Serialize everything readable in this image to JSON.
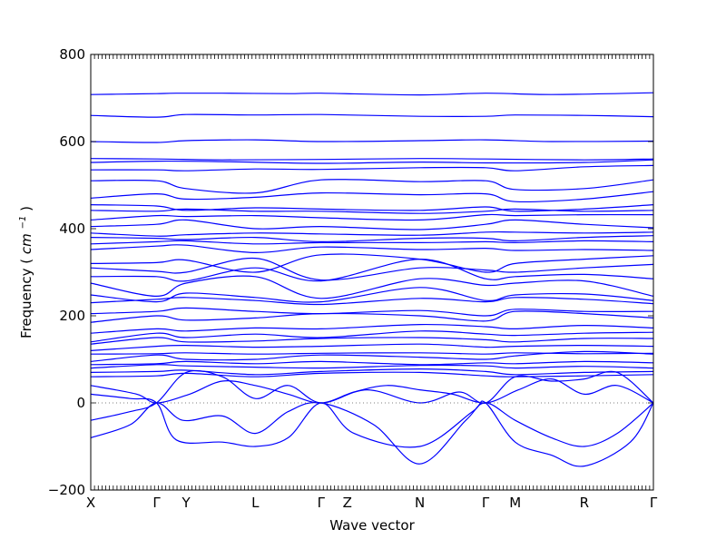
{
  "chart_data": {
    "type": "line",
    "xlabel": "Wave vector",
    "ylabel": "Frequency",
    "ylabel_unit_base": "cm",
    "ylabel_unit_exp": "−1",
    "ylim": [
      -200,
      800
    ],
    "y_ticks": [
      -200,
      0,
      200,
      400,
      600,
      800
    ],
    "grid": false,
    "zero_reference_line": 0,
    "color": "#0000ff",
    "high_symmetry_points": [
      {
        "label": "X",
        "x": 0.0
      },
      {
        "label": "Γ",
        "x": 1.0
      },
      {
        "label": "Y",
        "x": 1.45
      },
      {
        "label": "L",
        "x": 2.5
      },
      {
        "label": "Γ",
        "x": 3.5
      },
      {
        "label": "Z",
        "x": 3.9
      },
      {
        "label": "N",
        "x": 5.0
      },
      {
        "label": "Γ",
        "x": 6.0
      },
      {
        "label": "M",
        "x": 6.45
      },
      {
        "label": "R",
        "x": 7.5
      },
      {
        "label": "Γ",
        "x": 8.55
      }
    ],
    "series": [
      {
        "x": [
          0,
          0.5,
          1.0,
          1.3,
          2.0,
          3.0,
          3.5,
          5.0,
          6.0,
          7.0,
          8.55
        ],
        "y": [
          708,
          709,
          710,
          711,
          711,
          710,
          711,
          707,
          711,
          708,
          712
        ]
      },
      {
        "x": [
          0,
          1.0,
          1.45,
          2.5,
          3.5,
          5.0,
          6.0,
          6.45,
          7.5,
          8.55
        ],
        "y": [
          660,
          656,
          662,
          661,
          662,
          658,
          658,
          661,
          660,
          657
        ]
      },
      {
        "x": [
          0,
          1.0,
          1.45,
          2.5,
          3.5,
          5.0,
          6.0,
          7.0,
          8.55
        ],
        "y": [
          600,
          598,
          602,
          604,
          600,
          602,
          604,
          600,
          601
        ]
      },
      {
        "x": [
          0,
          1.0,
          2.0,
          3.5,
          5.0,
          6.0,
          7.5,
          8.55
        ],
        "y": [
          561,
          560,
          558,
          559,
          561,
          560,
          558,
          560
        ]
      },
      {
        "x": [
          0,
          1.0,
          2.0,
          3.5,
          5.0,
          6.0,
          7.5,
          8.55
        ],
        "y": [
          552,
          555,
          554,
          550,
          553,
          551,
          552,
          558
        ]
      },
      {
        "x": [
          0,
          1.0,
          1.45,
          2.5,
          3.5,
          5.0,
          6.0,
          6.45,
          7.5,
          8.55
        ],
        "y": [
          535,
          535,
          533,
          537,
          536,
          540,
          540,
          533,
          542,
          545
        ]
      },
      {
        "x": [
          0,
          1.0,
          1.45,
          2.5,
          3.5,
          5.0,
          6.0,
          6.45,
          7.5,
          8.55
        ],
        "y": [
          510,
          510,
          492,
          482,
          512,
          508,
          510,
          490,
          492,
          512
        ]
      },
      {
        "x": [
          0,
          1.0,
          1.45,
          2.5,
          3.5,
          5.0,
          6.0,
          6.45,
          7.5,
          8.55
        ],
        "y": [
          470,
          480,
          468,
          472,
          482,
          478,
          480,
          462,
          468,
          485
        ]
      },
      {
        "x": [
          0,
          1.0,
          1.45,
          2.5,
          3.5,
          5.0,
          6.0,
          6.45,
          7.5,
          8.55
        ],
        "y": [
          455,
          452,
          442,
          448,
          445,
          442,
          450,
          440,
          445,
          455
        ]
      },
      {
        "x": [
          0,
          1.0,
          1.45,
          2.5,
          3.5,
          5.0,
          6.0,
          6.45,
          7.5,
          8.55
        ],
        "y": [
          442,
          440,
          445,
          440,
          440,
          435,
          440,
          445,
          440,
          442
        ]
      },
      {
        "x": [
          0,
          1.0,
          1.45,
          2.5,
          3.5,
          5.0,
          6.0,
          6.45,
          7.5,
          8.55
        ],
        "y": [
          420,
          430,
          428,
          430,
          425,
          420,
          432,
          430,
          432,
          432
        ]
      },
      {
        "x": [
          0,
          1.0,
          1.45,
          2.5,
          3.5,
          5.0,
          6.0,
          6.45,
          7.5,
          8.55
        ],
        "y": [
          405,
          410,
          420,
          400,
          405,
          398,
          410,
          420,
          410,
          402
        ]
      },
      {
        "x": [
          0,
          1.0,
          1.45,
          2.5,
          3.5,
          5.0,
          6.0,
          6.45,
          7.5,
          8.55
        ],
        "y": [
          390,
          383,
          386,
          390,
          388,
          385,
          392,
          392,
          390,
          392
        ]
      },
      {
        "x": [
          0,
          1.0,
          1.45,
          2.5,
          3.5,
          5.0,
          6.0,
          6.45,
          7.5,
          8.55
        ],
        "y": [
          380,
          378,
          375,
          380,
          370,
          378,
          378,
          372,
          380,
          384
        ]
      },
      {
        "x": [
          0,
          1.0,
          1.45,
          2.5,
          3.5,
          5.0,
          6.0,
          6.45,
          7.5,
          8.55
        ],
        "y": [
          365,
          370,
          372,
          365,
          368,
          368,
          370,
          368,
          372,
          370
        ]
      },
      {
        "x": [
          0,
          1.0,
          1.45,
          2.5,
          3.5,
          5.0,
          6.0,
          6.45,
          7.5,
          8.55
        ],
        "y": [
          352,
          360,
          362,
          345,
          358,
          352,
          355,
          350,
          352,
          350
        ]
      },
      {
        "x": [
          0,
          1.0,
          1.45,
          2.5,
          3.5,
          5.0,
          6.0,
          6.45,
          7.5,
          8.55
        ],
        "y": [
          320,
          322,
          328,
          300,
          340,
          330,
          300,
          320,
          330,
          338
        ]
      },
      {
        "x": [
          0,
          1.0,
          1.45,
          2.5,
          3.5,
          5.0,
          6.0,
          6.45,
          7.5,
          8.55
        ],
        "y": [
          310,
          302,
          300,
          332,
          282,
          310,
          305,
          300,
          310,
          318
        ]
      },
      {
        "x": [
          0,
          1.0,
          1.45,
          2.5,
          3.5,
          5.0,
          6.0,
          6.45,
          7.5,
          8.55
        ],
        "y": [
          290,
          290,
          280,
          310,
          280,
          330,
          285,
          290,
          295,
          285
        ]
      },
      {
        "x": [
          0,
          1.0,
          1.45,
          2.5,
          3.5,
          5.0,
          6.0,
          6.45,
          7.5,
          8.55
        ],
        "y": [
          275,
          245,
          275,
          290,
          240,
          285,
          270,
          275,
          280,
          245
        ]
      },
      {
        "x": [
          0,
          1.0,
          1.45,
          2.5,
          3.5,
          5.0,
          6.0,
          6.45,
          7.5,
          8.55
        ],
        "y": [
          248,
          232,
          252,
          242,
          232,
          265,
          235,
          248,
          250,
          235
        ]
      },
      {
        "x": [
          0,
          1.0,
          1.45,
          2.5,
          3.5,
          5.0,
          6.0,
          6.45,
          7.5,
          8.55
        ],
        "y": [
          230,
          238,
          242,
          235,
          226,
          240,
          232,
          242,
          238,
          228
        ]
      },
      {
        "x": [
          0,
          1.0,
          1.45,
          2.5,
          3.5,
          5.0,
          6.0,
          6.45,
          7.5,
          8.55
        ],
        "y": [
          205,
          210,
          218,
          210,
          205,
          212,
          200,
          215,
          210,
          210
        ]
      },
      {
        "x": [
          0,
          1.0,
          1.45,
          2.5,
          3.5,
          5.0,
          6.0,
          6.45,
          7.5,
          8.55
        ],
        "y": [
          185,
          200,
          190,
          195,
          205,
          200,
          188,
          210,
          205,
          195
        ]
      },
      {
        "x": [
          0,
          1.0,
          1.45,
          2.5,
          3.5,
          5.0,
          6.0,
          6.45,
          7.5,
          8.55
        ],
        "y": [
          160,
          170,
          165,
          172,
          170,
          180,
          175,
          170,
          178,
          172
        ]
      },
      {
        "x": [
          0,
          1.0,
          1.45,
          2.5,
          3.5,
          5.0,
          6.0,
          6.45,
          7.5,
          8.55
        ],
        "y": [
          140,
          160,
          150,
          158,
          150,
          165,
          158,
          155,
          160,
          162
        ]
      },
      {
        "x": [
          0,
          1.0,
          1.45,
          2.5,
          3.5,
          5.0,
          6.0,
          6.45,
          7.5,
          8.55
        ],
        "y": [
          135,
          150,
          140,
          142,
          148,
          150,
          145,
          140,
          148,
          148
        ]
      },
      {
        "x": [
          0,
          1.0,
          1.45,
          2.5,
          3.5,
          5.0,
          6.0,
          6.45,
          7.5,
          8.55
        ],
        "y": [
          120,
          130,
          132,
          128,
          130,
          135,
          128,
          130,
          132,
          130
        ]
      },
      {
        "x": [
          0,
          1.0,
          1.45,
          2.5,
          3.5,
          5.0,
          6.0,
          6.45,
          7.5,
          8.55
        ],
        "y": [
          112,
          113,
          115,
          112,
          114,
          115,
          112,
          115,
          113,
          114
        ]
      },
      {
        "x": [
          0,
          1.0,
          1.45,
          2.5,
          3.5,
          5.0,
          6.0,
          6.45,
          7.5,
          8.55
        ],
        "y": [
          95,
          110,
          100,
          100,
          110,
          105,
          100,
          108,
          118,
          112
        ]
      },
      {
        "x": [
          0,
          1.0,
          1.45,
          2.5,
          3.5,
          5.0,
          6.0,
          6.45,
          7.5,
          8.55
        ],
        "y": [
          88,
          90,
          95,
          90,
          95,
          88,
          92,
          90,
          95,
          92
        ]
      },
      {
        "x": [
          0,
          1.0,
          1.45,
          2.5,
          3.5,
          5.0,
          6.0,
          6.45,
          7.5,
          8.55
        ],
        "y": [
          80,
          88,
          85,
          82,
          80,
          86,
          85,
          80,
          84,
          80
        ]
      },
      {
        "x": [
          0,
          1.0,
          1.45,
          2.5,
          3.5,
          5.0,
          6.0,
          6.45,
          7.5,
          8.55
        ],
        "y": [
          70,
          72,
          75,
          65,
          72,
          78,
          72,
          65,
          70,
          72
        ]
      },
      {
        "x": [
          0,
          1.0,
          1.45,
          2.5,
          3.5,
          5.0,
          6.0,
          6.45,
          7.5,
          8.55
        ],
        "y": [
          60,
          62,
          68,
          60,
          68,
          70,
          62,
          60,
          62,
          65
        ]
      },
      {
        "x": [
          0,
          0.6,
          1.0,
          1.45,
          2.0,
          2.5,
          3.0,
          3.5,
          4.2,
          5.0,
          5.6,
          6.0,
          6.45,
          7.0,
          7.5,
          8.0,
          8.55
        ],
        "y": [
          -40,
          -20,
          0,
          70,
          60,
          10,
          40,
          0,
          30,
          0,
          25,
          0,
          60,
          50,
          55,
          70,
          0
        ]
      },
      {
        "x": [
          0,
          0.6,
          1.0,
          1.4,
          2.0,
          2.5,
          3.0,
          3.5,
          4.3,
          5.0,
          5.7,
          6.0,
          6.45,
          7.0,
          7.5,
          8.0,
          8.55
        ],
        "y": [
          -80,
          -50,
          0,
          -40,
          -30,
          -70,
          -20,
          0,
          -50,
          -140,
          -40,
          0,
          -40,
          -80,
          -100,
          -70,
          0
        ]
      },
      {
        "x": [
          0,
          0.6,
          1.0,
          1.3,
          2.0,
          2.5,
          3.0,
          3.5,
          4.0,
          5.0,
          5.8,
          6.0,
          6.45,
          7.0,
          7.5,
          8.2,
          8.55
        ],
        "y": [
          20,
          10,
          0,
          -85,
          -90,
          -100,
          -80,
          0,
          -70,
          -100,
          -20,
          0,
          -90,
          -120,
          -145,
          -90,
          0
        ]
      },
      {
        "x": [
          0,
          0.7,
          1.0,
          1.5,
          2.0,
          2.5,
          3.0,
          3.5,
          4.0,
          4.5,
          5.0,
          5.5,
          6.0,
          6.5,
          7.0,
          7.5,
          8.0,
          8.55
        ],
        "y": [
          40,
          20,
          0,
          20,
          50,
          40,
          20,
          0,
          25,
          40,
          30,
          20,
          0,
          30,
          55,
          20,
          40,
          0
        ]
      }
    ]
  }
}
